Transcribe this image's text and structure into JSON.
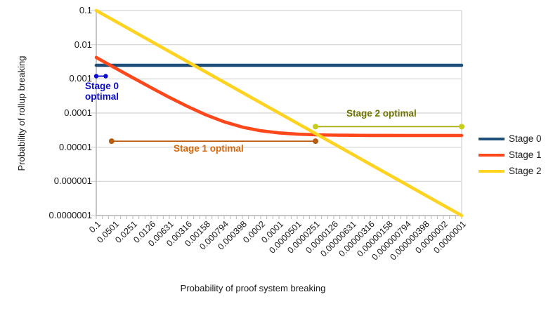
{
  "chart_data": {
    "type": "line",
    "title": "",
    "xlabel": "Probability of proof system breaking",
    "ylabel": "Probability of rollup breaking",
    "x_scale": "log",
    "y_scale": "log",
    "x_range": [
      0.1,
      1e-07
    ],
    "y_range": [
      0.1,
      1e-07
    ],
    "grid": "horizontal",
    "x_ticks": [
      "0.1",
      "0.0501",
      "0.0251",
      "0.0126",
      "0.00631",
      "0.00316",
      "0.00158",
      "0.000794",
      "0.000398",
      "0.0002",
      "0.0001",
      "0.0000501",
      "0.0000251",
      "0.0000126",
      "0.00000631",
      "0.00000316",
      "0.00000158",
      "0.000000794",
      "0.000000398",
      "0.0000002",
      "0.0000001"
    ],
    "y_ticks": [
      "0.1",
      "0.01",
      "0.001",
      "0.0001",
      "0.00001",
      "0.000001",
      "0.0000001"
    ],
    "series": [
      {
        "name": "Stage 0",
        "color": "#1f4e79",
        "points": [
          [
            0.1,
            0.0025
          ],
          [
            1e-07,
            0.0025
          ]
        ]
      },
      {
        "name": "Stage 1",
        "color": "#ff471c",
        "points": [
          [
            0.1,
            0.00422
          ],
          [
            0.0501,
            0.00213
          ],
          [
            0.0251,
            0.00108
          ],
          [
            0.0126,
            0.000551
          ],
          [
            0.00631,
            0.000287
          ],
          [
            0.00316,
            0.000155
          ],
          [
            0.00158,
            8.84e-05
          ],
          [
            0.000794,
            5.53e-05
          ],
          [
            0.000398,
            3.87e-05
          ],
          [
            0.0002,
            3.04e-05
          ],
          [
            0.0001,
            2.62e-05
          ],
          [
            5.01e-05,
            2.41e-05
          ],
          [
            2.51e-05,
            2.31e-05
          ],
          [
            1.26e-05,
            2.25e-05
          ],
          [
            6.31e-06,
            2.23e-05
          ],
          [
            3.16e-06,
            2.21e-05
          ],
          [
            1.58e-06,
            2.21e-05
          ],
          [
            7.94e-07,
            2.2e-05
          ],
          [
            3.98e-07,
            2.2e-05
          ],
          [
            2e-07,
            2.2e-05
          ],
          [
            1e-07,
            2.2e-05
          ]
        ]
      },
      {
        "name": "Stage 2",
        "color": "#ffd320",
        "points": [
          [
            0.1,
            0.1
          ],
          [
            1e-07,
            1e-07
          ]
        ]
      }
    ],
    "annotations": [
      {
        "id": "stage0",
        "label": "Stage 0\noptimal",
        "text_color": "#0b0bcb",
        "line_color": "#0b0bcb",
        "dot_color": "#0b0bcb",
        "x_start": 0.1,
        "x_end": 0.07,
        "y": 0.0012
      },
      {
        "id": "stage1",
        "label": "Stage 1 optimal",
        "text_color": "#d2690f",
        "line_color": "#b85c10",
        "dot_color": "#b85c10",
        "x_start": 0.056,
        "x_end": 2.51e-05,
        "y": 1.5e-05
      },
      {
        "id": "stage2",
        "label": "Stage 2 optimal",
        "text_color": "#6f7300",
        "line_color": "#a9ad08",
        "dot_color": "#c5ce1d",
        "x_start": 2.51e-05,
        "x_end": 1e-07,
        "y": 4e-05
      }
    ],
    "legend": {
      "position": "right",
      "entries": [
        {
          "label": "Stage 0",
          "color": "#1f4e79"
        },
        {
          "label": "Stage 1",
          "color": "#ff471c"
        },
        {
          "label": "Stage 2",
          "color": "#ffd320"
        }
      ]
    }
  }
}
